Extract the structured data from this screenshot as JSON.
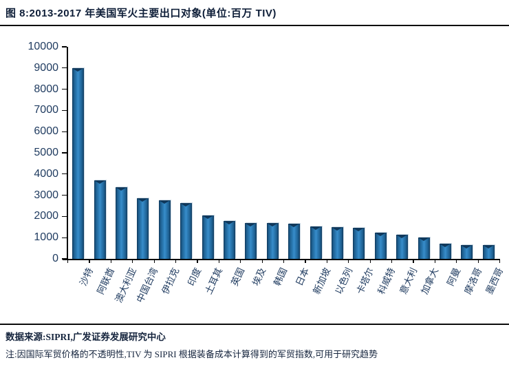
{
  "header": {
    "title": "图 8:2013-2017 年美国军火主要出口对象(单位:百万 TIV)"
  },
  "chart_data": {
    "type": "bar",
    "title": "2013-2017 年美国军火主要出口对象",
    "unit_label": "百万 TIV",
    "categories": [
      "沙特",
      "阿联酋",
      "澳大利亚",
      "中国台湾",
      "伊拉克",
      "印度",
      "土耳其",
      "英国",
      "埃及",
      "韩国",
      "日本",
      "新加坡",
      "以色列",
      "卡塔尔",
      "科威特",
      "意大利",
      "加拿大",
      "阿曼",
      "摩洛哥",
      "墨西哥"
    ],
    "values": [
      9000,
      3710,
      3370,
      2850,
      2750,
      2620,
      2060,
      1790,
      1690,
      1690,
      1640,
      1530,
      1480,
      1475,
      1240,
      1130,
      1020,
      700,
      660,
      645
    ],
    "xlabel": "",
    "ylabel": "",
    "ylim": [
      0,
      10000
    ],
    "ytick_step": 1000,
    "grid": false,
    "legend": "none",
    "bar_color": "#2f82bd",
    "bar_edge_color": "#10395b",
    "axis_text_color": "#1e3a5f"
  },
  "footer": {
    "source": "数据来源:SIPRI,广发证券发展研究中心",
    "note": "注:因国际军贸价格的不透明性,TIV 为 SIPRI 根据装备成本计算得到的军贸指数,可用于研究趋势"
  },
  "colors": {
    "rule": "#0a0a0a",
    "title_text": "#0e1e38",
    "footer_text": "#15243d",
    "background": "#ffffff"
  }
}
